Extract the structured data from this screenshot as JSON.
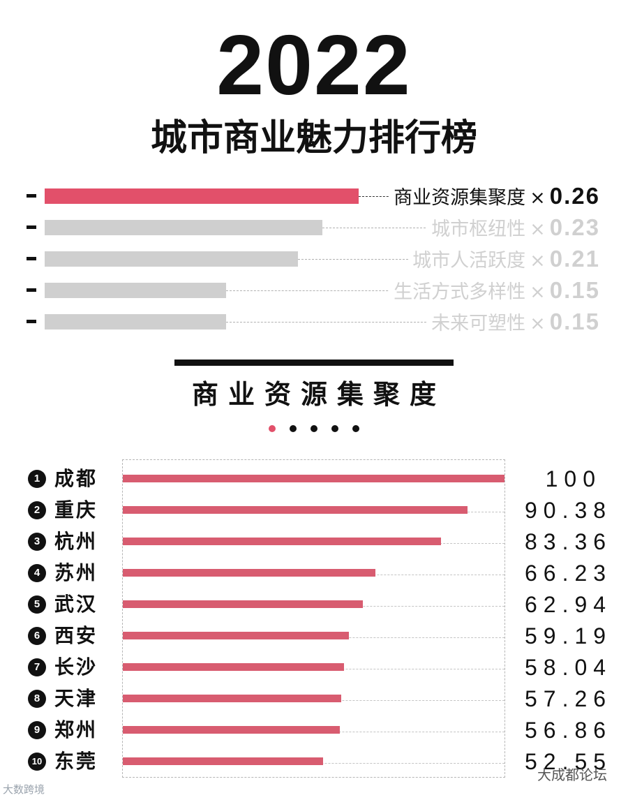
{
  "header": {
    "year": "2022",
    "subtitle": "城市商业魅力排行榜"
  },
  "weights": [
    {
      "label": "商业资源集聚度",
      "times": "×",
      "value": "0.26",
      "weight": 0.26,
      "active": true
    },
    {
      "label": "城市枢纽性",
      "times": "×",
      "value": "0.23",
      "weight": 0.23,
      "active": false
    },
    {
      "label": "城市人活跃度",
      "times": "×",
      "value": "0.21",
      "weight": 0.21,
      "active": false
    },
    {
      "label": "生活方式多样性",
      "times": "×",
      "value": "0.15",
      "weight": 0.15,
      "active": false
    },
    {
      "label": "未来可塑性",
      "times": "×",
      "value": "0.15",
      "weight": 0.15,
      "active": false
    }
  ],
  "section": {
    "title": "商业资源集聚度",
    "pager_count": 5,
    "pager_active": 0
  },
  "chart_data": {
    "type": "bar",
    "title": "商业资源集聚度",
    "categories": [
      "成都",
      "重庆",
      "杭州",
      "苏州",
      "武汉",
      "西安",
      "长沙",
      "天津",
      "郑州",
      "东莞"
    ],
    "ranks": [
      "1",
      "2",
      "3",
      "4",
      "5",
      "6",
      "7",
      "8",
      "9",
      "10"
    ],
    "values": [
      100,
      90.38,
      83.36,
      66.23,
      62.94,
      59.19,
      58.04,
      57.26,
      56.86,
      52.55
    ],
    "value_labels": [
      "100",
      "90.38",
      "83.36",
      "66.23",
      "62.94",
      "59.19",
      "58.04",
      "57.26",
      "56.86",
      "52.55"
    ],
    "xlim": [
      0,
      100
    ],
    "colors": {
      "bar": "#d85c70",
      "active_weight": "#e2506a",
      "inactive_weight": "#cfcfcf"
    }
  },
  "watermarks": {
    "left": "大数跨境",
    "right": "大成都论坛"
  }
}
